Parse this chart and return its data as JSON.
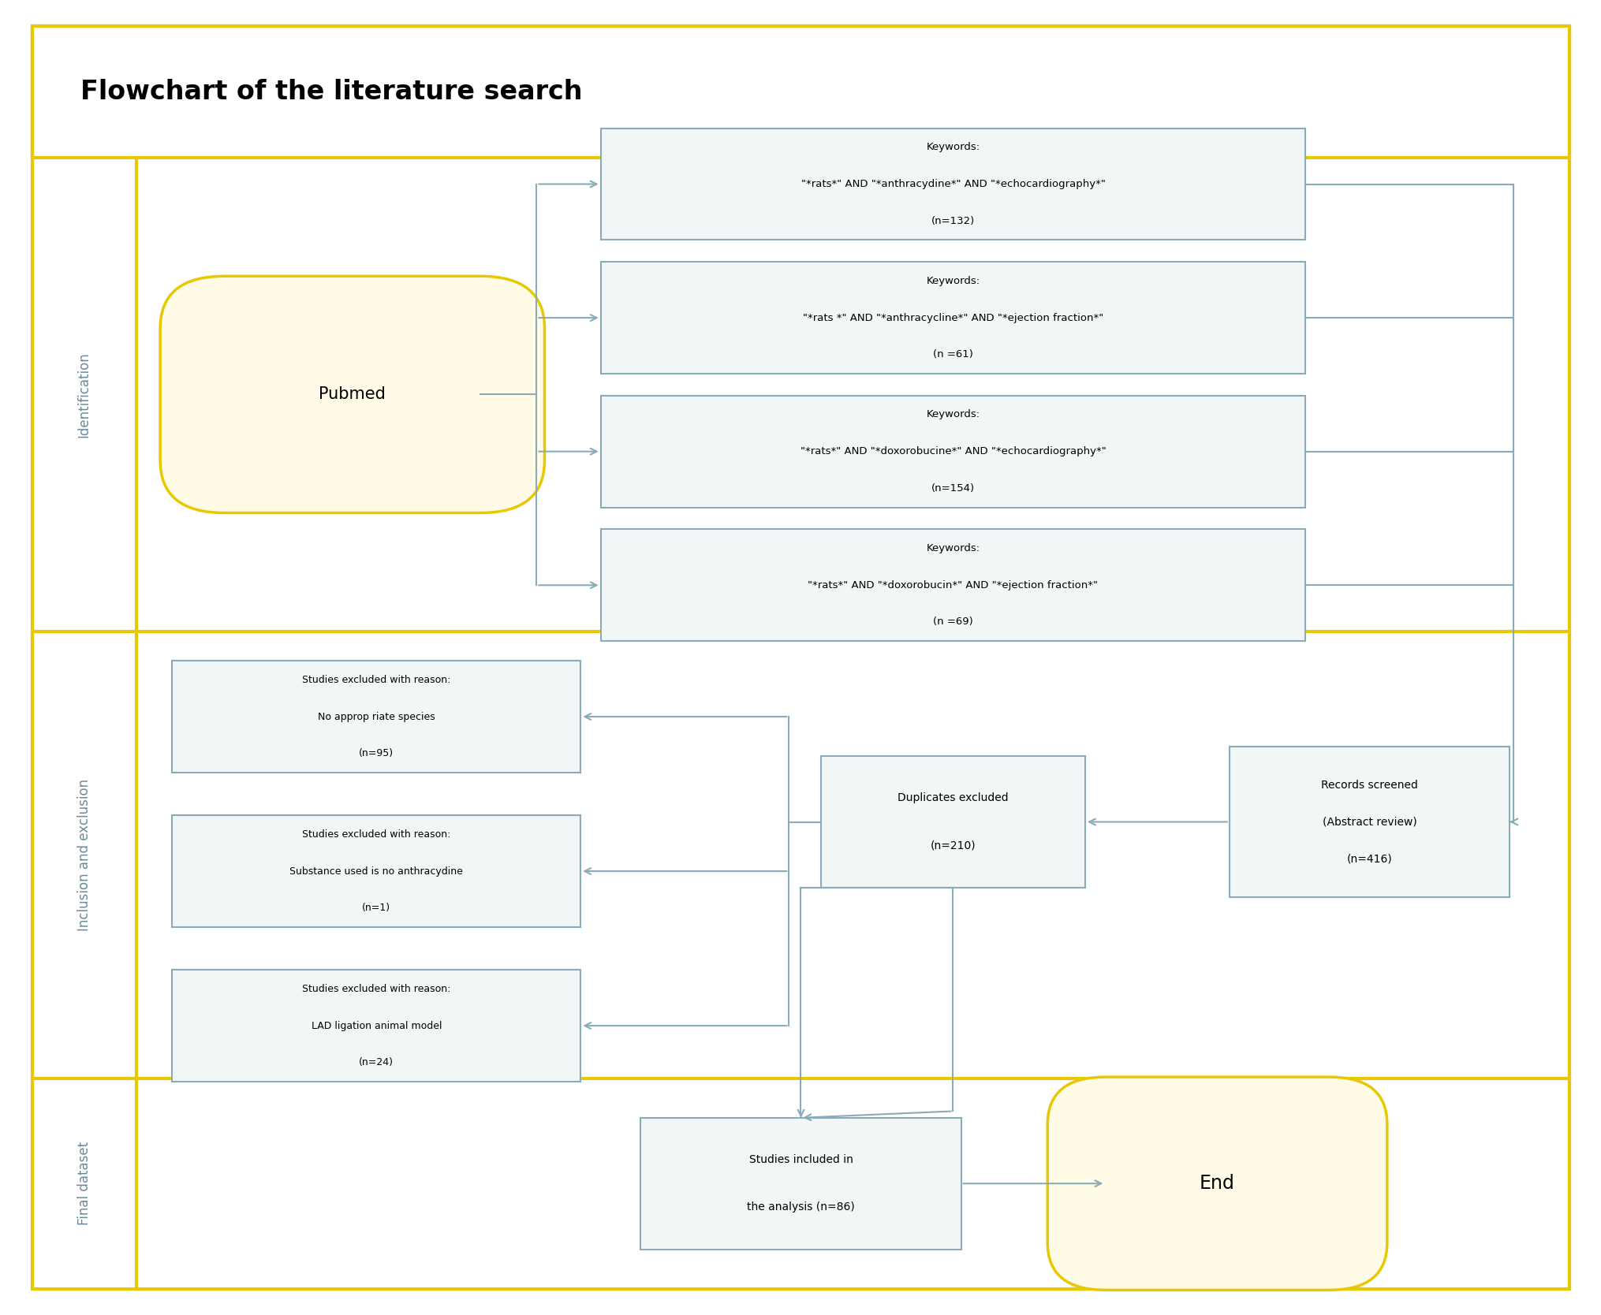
{
  "title": "Flowchart of the literature search",
  "title_fontsize": 24,
  "background_color": "#ffffff",
  "border_color": "#e8c800",
  "section_label_color": "#6a8a99",
  "box_edge_color": "#8aacb8",
  "box_fill_color": "#f2f6f7",
  "arrow_color": "#8aacb8",
  "pubmed_fill": "#fffbe6",
  "pubmed_edge": "#e8c800",
  "end_fill": "#fffbe6",
  "end_edge": "#e8c800",
  "keyword_boxes": [
    {
      "line1": "Keywords:",
      "line2": "\"*rats*\" AND \"*anthracydine*\" AND \"*echocardiography*\"",
      "line3": "(n=132)"
    },
    {
      "line1": "Keywords:",
      "line2": "\"*rats *\" AND \"*anthracycline*\" AND \"*ejection fraction*\"",
      "line3": "(n =61)"
    },
    {
      "line1": "Keywords:",
      "line2": "\"*rats*\" AND \"*doxorobucine*\" AND \"*echocardiography*\"",
      "line3": "(n=154)"
    },
    {
      "line1": "Keywords:",
      "line2": "\"*rats*\" AND \"*doxorobucin*\" AND \"*ejection fraction*\"",
      "line3": "(n =69)"
    }
  ],
  "exclusion_boxes": [
    {
      "line1": "Studies excluded with reason:",
      "line2": "No approp riate species",
      "line3": "(n=95)"
    },
    {
      "line1": "Studies excluded with reason:",
      "line2": "Substance used is no anthracydine",
      "line3": "(n=1)"
    },
    {
      "line1": "Studies excluded with reason:",
      "line2": "LAD ligation animal model",
      "line3": "(n=24)"
    }
  ]
}
